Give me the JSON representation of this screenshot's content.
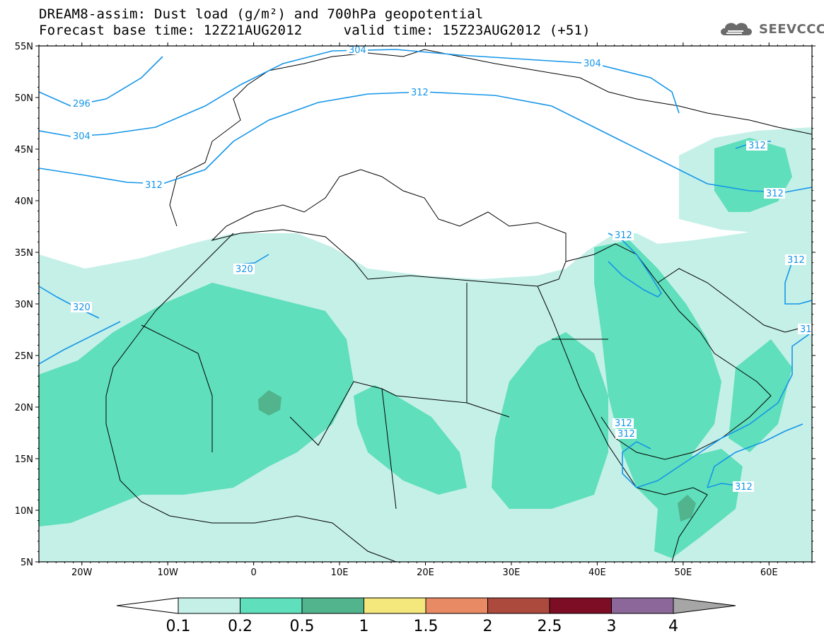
{
  "header": {
    "line1": "DREAM8-assim: Dust load (g/m²) and 700hPa geopotential",
    "line2": "Forecast base time: 12Z21AUG2012     valid time: 15Z23AUG2012 (+51)"
  },
  "logo": {
    "text": "SEEVCCC",
    "icon": "cloud-logo-icon"
  },
  "axes": {
    "lat_labels": [
      "55N",
      "50N",
      "45N",
      "40N",
      "35N",
      "30N",
      "25N",
      "20N",
      "15N",
      "10N",
      "5N"
    ],
    "lon_labels": [
      "20W",
      "10W",
      "0",
      "10E",
      "20E",
      "30E",
      "40E",
      "50E",
      "60E"
    ],
    "lon_range": [
      -25,
      65
    ],
    "lat_range": [
      5,
      55
    ]
  },
  "contour_labels": [
    "296",
    "304",
    "304",
    "304",
    "312",
    "312",
    "312",
    "312",
    "312",
    "312",
    "312",
    "312",
    "312",
    "320",
    "320",
    "31"
  ],
  "colorbar": {
    "levels": [
      "0.1",
      "0.2",
      "0.5",
      "1",
      "1.5",
      "2",
      "2.5",
      "3",
      "4"
    ],
    "colors": [
      "#c5f0e8",
      "#5fdfbb",
      "#52b48d",
      "#f4e77b",
      "#e88a64",
      "#ad4a3e",
      "#7d0d25",
      "#8c679a"
    ],
    "under_color": "#ffffff",
    "over_color": "#a6a6a6"
  },
  "colors": {
    "contour": "#1596e8",
    "coast": "#000000",
    "dust_low": "#c5f0e8",
    "dust_mid": "#5fdfbb",
    "dust_high": "#52b48d"
  }
}
